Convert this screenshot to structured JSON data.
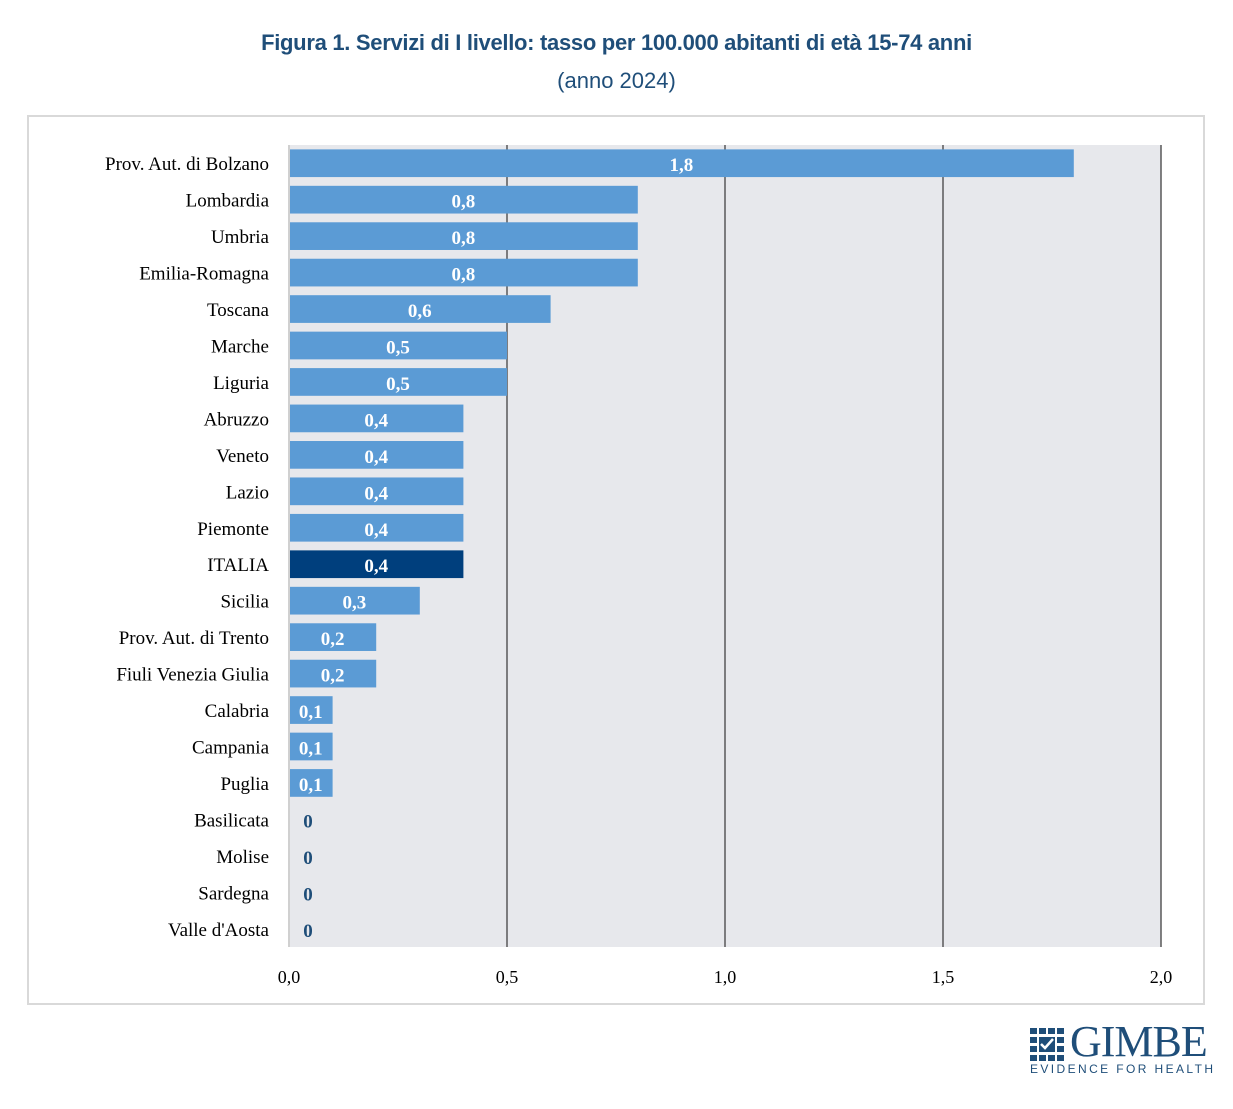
{
  "chart_data": {
    "type": "bar",
    "orientation": "horizontal",
    "title": "Figura 1. Servizi di I livello: tasso per 100.000 abitanti di età 15-74 anni",
    "subtitle": "(anno 2024)",
    "xlabel": "",
    "ylabel": "",
    "xlim": [
      0,
      2.0
    ],
    "xticks": [
      0,
      0.5,
      1.0,
      1.5,
      2.0
    ],
    "xtick_labels": [
      "0,0",
      "0,5",
      "1,0",
      "1,5",
      "2,0"
    ],
    "grid": "vertical",
    "legend": "none",
    "categories": [
      "Prov. Aut. di Bolzano",
      "Lombardia",
      "Umbria",
      "Emilia-Romagna",
      "Toscana",
      "Marche",
      "Liguria",
      "Abruzzo",
      "Veneto",
      "Lazio",
      "Piemonte",
      "ITALIA",
      "Sicilia",
      "Prov. Aut. di Trento",
      "Fiuli Venezia Giulia",
      "Calabria",
      "Campania",
      "Puglia",
      "Basilicata",
      "Molise",
      "Sardegna",
      "Valle d'Aosta"
    ],
    "values": [
      1.8,
      0.8,
      0.8,
      0.8,
      0.6,
      0.5,
      0.5,
      0.4,
      0.4,
      0.4,
      0.4,
      0.4,
      0.3,
      0.2,
      0.2,
      0.1,
      0.1,
      0.1,
      0,
      0,
      0,
      0
    ],
    "value_labels": [
      "1,8",
      "0,8",
      "0,8",
      "0,8",
      "0,6",
      "0,5",
      "0,5",
      "0,4",
      "0,4",
      "0,4",
      "0,4",
      "0,4",
      "0,3",
      "0,2",
      "0,2",
      "0,1",
      "0,1",
      "0,1",
      "0",
      "0",
      "0",
      "0"
    ],
    "highlight_category": "ITALIA",
    "colors": {
      "bar": "#5b9bd5",
      "highlight_bar": "#003f7d",
      "plot_background": "#e7e8ec",
      "gridline": "#595959",
      "value_label_inside": "#ffffff",
      "value_label_zero": "#1f4e79",
      "title": "#1f4e79"
    }
  },
  "logo": {
    "name": "GIMBE",
    "tagline": "EVIDENCE FOR HEALTH"
  }
}
